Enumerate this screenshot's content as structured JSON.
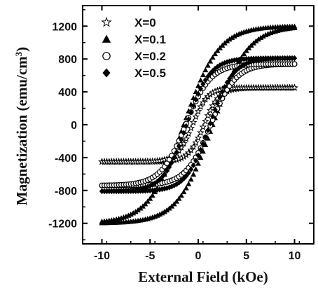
{
  "chart_data": {
    "type": "scatter",
    "xlabel": "External Field (kOe)",
    "ylabel_main": "Magnetization (emu/cm",
    "ylabel_sup": "3",
    "ylabel_close": ")",
    "xlim": [
      -12,
      12
    ],
    "ylim": [
      -1450,
      1450
    ],
    "xticks": [
      -10,
      -5,
      0,
      5,
      10
    ],
    "xtick_labels": [
      "-10",
      "-5",
      "0",
      "5",
      "10"
    ],
    "yticks": [
      -1200,
      -800,
      -400,
      0,
      400,
      800,
      1200
    ],
    "ytick_labels": [
      "-1200",
      "-800",
      "-400",
      "0",
      "400",
      "800",
      "1200"
    ],
    "grid": false,
    "legend_position": "top-left",
    "series": [
      {
        "name": "X=0",
        "marker": "star-open",
        "Ms": 450,
        "Hc": 0.6,
        "w": 1.6
      },
      {
        "name": "X=0.1",
        "marker": "triangle-filled",
        "Ms": 1200,
        "Hc": 1.5,
        "w": 3.6
      },
      {
        "name": "X=0.2",
        "marker": "circle-open",
        "Ms": 740,
        "Hc": 1.3,
        "w": 2.6
      },
      {
        "name": "X=0.5",
        "marker": "diamond-filled",
        "Ms": 810,
        "Hc": 1.2,
        "w": 2.4
      }
    ]
  }
}
